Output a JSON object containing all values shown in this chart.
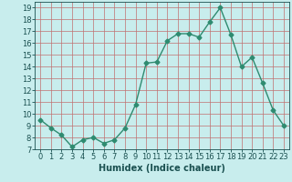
{
  "x": [
    0,
    1,
    2,
    3,
    4,
    5,
    6,
    7,
    8,
    9,
    10,
    11,
    12,
    13,
    14,
    15,
    16,
    17,
    18,
    19,
    20,
    21,
    22,
    23
  ],
  "y": [
    9.5,
    8.8,
    8.2,
    7.2,
    7.8,
    8.0,
    7.5,
    7.8,
    8.8,
    10.8,
    14.3,
    14.4,
    16.2,
    16.8,
    16.8,
    16.5,
    17.8,
    19.0,
    16.7,
    14.0,
    14.8,
    12.6,
    10.3,
    9.0
  ],
  "line_color": "#2e8b70",
  "marker": "D",
  "markersize": 2.5,
  "linewidth": 1.0,
  "xlabel": "Humidex (Indice chaleur)",
  "xlim": [
    -0.5,
    23.5
  ],
  "ylim": [
    7,
    19.5
  ],
  "yticks": [
    7,
    8,
    9,
    10,
    11,
    12,
    13,
    14,
    15,
    16,
    17,
    18,
    19
  ],
  "xticks": [
    0,
    1,
    2,
    3,
    4,
    5,
    6,
    7,
    8,
    9,
    10,
    11,
    12,
    13,
    14,
    15,
    16,
    17,
    18,
    19,
    20,
    21,
    22,
    23
  ],
  "bg_color": "#c8eded",
  "grid_color": "#c07070",
  "text_color": "#1a5050",
  "xlabel_fontsize": 7,
  "tick_fontsize": 6
}
